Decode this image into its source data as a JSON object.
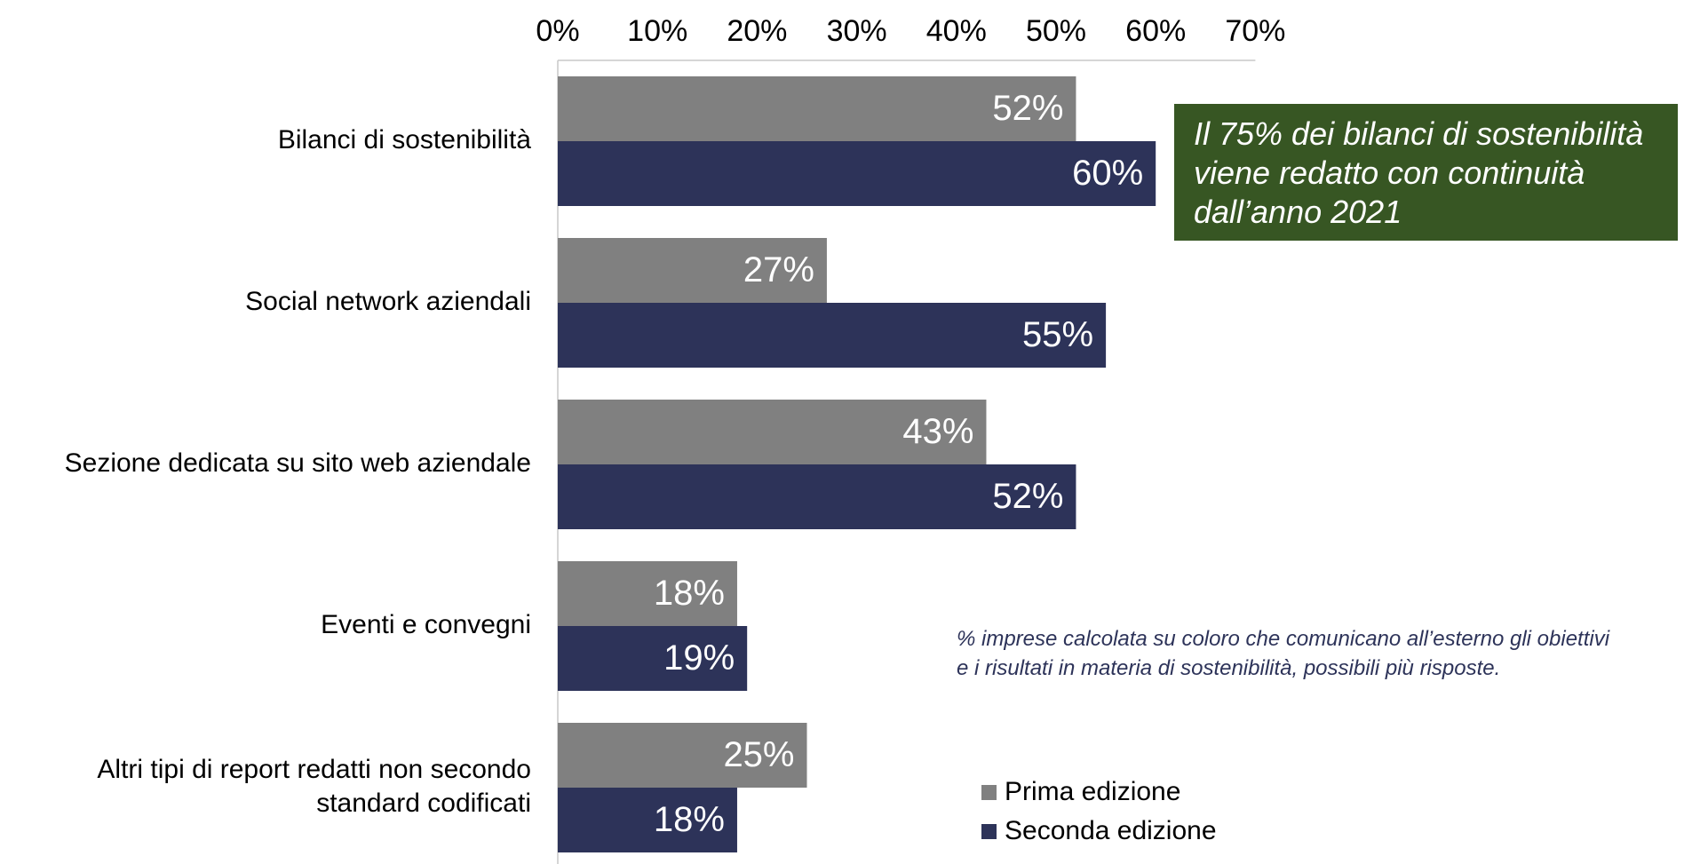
{
  "chart_data": {
    "type": "bar",
    "orientation": "horizontal",
    "categories": [
      [
        "Bilanci di sostenibilità"
      ],
      [
        "Social network aziendali"
      ],
      [
        "Sezione dedicata su sito web aziendale"
      ],
      [
        "Eventi e convegni"
      ],
      [
        "Altri tipi di report redatti non secondo",
        "standard codificati"
      ]
    ],
    "series": [
      {
        "name": "Prima edizione",
        "color": "#808080",
        "values": [
          52,
          27,
          43,
          18,
          25
        ]
      },
      {
        "name": "Seconda edizione",
        "color": "#2d3359",
        "values": [
          60,
          55,
          52,
          19,
          18
        ]
      }
    ],
    "value_suffix": "%",
    "xlim": [
      0,
      70
    ],
    "x_ticks": [
      0,
      10,
      20,
      30,
      40,
      50,
      60,
      70
    ],
    "x_axis_position": "top",
    "grid": false,
    "legend_position": "bottom-right",
    "data_labels": true
  },
  "callout": {
    "lines": [
      "Il 75% dei bilanci di sostenibilità",
      "viene redatto con continuità",
      "dall’anno 2021"
    ],
    "background_color": "#375623"
  },
  "note": {
    "lines": [
      "% imprese calcolata su coloro che comunicano all’esterno gli obiettivi",
      "e i risultati in materia di sostenibilità, possibili più risposte."
    ]
  }
}
